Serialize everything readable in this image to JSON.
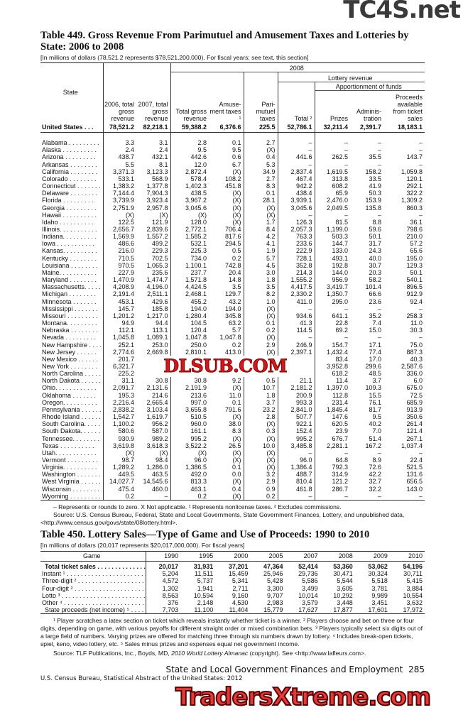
{
  "watermarks": {
    "top": "TC4S.net",
    "middle": "DLSUB.COM",
    "bottom": "TradersXtreme.com"
  },
  "t449": {
    "title": "Table 449. Gross Revenue From Parimutuel and Amusement Taxes and Lotteries by State: 2006 to 2008",
    "subtitle": "[In millions of dollars (78,521.2 represents $78,521,200,000). For fiscal years; see text, this section]",
    "headers": {
      "state": "State",
      "y2008": "2008",
      "lottery": "Lottery revenue",
      "apportion": "Apportionment of funds",
      "c2006": "2006, total gross revenue",
      "c2007": "2007, total gross revenue",
      "total_gross": "Total gross revenue",
      "amuse": "Amuse- ment taxes ¹",
      "pari": "Pari- mutuel taxes",
      "total": "Total ²",
      "prizes": "Prizes",
      "admin": "Adminis- tration",
      "proceeds": "Proceeds available from ticket sales"
    },
    "us": [
      "United States . . .",
      "78,521.2",
      "82,218.1",
      "59,388.2",
      "6,376.6",
      "225.5",
      "52,786.1",
      "32,211.4",
      "2,391.7",
      "18,183.1"
    ],
    "rows": [
      [
        "Alabama . . . . . . . . .",
        "3.3",
        "3.1",
        "2.8",
        "0.1",
        "2.7",
        "–",
        "–",
        "–",
        "–"
      ],
      [
        "Alaska . . . . . . . . . .",
        "2.4",
        "2.4",
        "9.5",
        "9.5",
        "(X)",
        "–",
        "–",
        "–",
        "–"
      ],
      [
        "Arizona . . . . . . . . .",
        "438.7",
        "432.1",
        "442.6",
        "0.6",
        "0.4",
        "441.6",
        "262.5",
        "35.5",
        "143.7"
      ],
      [
        "Arkansas . . . . . . . .",
        "5.5",
        "8.1",
        "12.0",
        "6.7",
        "5.3",
        "–",
        "–",
        "–",
        "–"
      ],
      [
        "California . . . . . . . .",
        "3,371.3",
        "3,123.3",
        "2,872.4",
        "(X)",
        "34.9",
        "2,837.4",
        "1,619.5",
        "158.2",
        "1,059.8"
      ],
      [
        "Colorado . . . . . . . .",
        "533.1",
        "568.9",
        "578.4",
        "108.2",
        "2.7",
        "467.4",
        "313.8",
        "33.5",
        "120.1"
      ],
      [
        "Connecticut . . . . . . .",
        "1,383.2",
        "1,377.8",
        "1,402.3",
        "451.8",
        "8.3",
        "942.2",
        "608.2",
        "41.9",
        "292.1"
      ],
      [
        "Delaware . . . . . . . .",
        "7,144.4",
        "7,904.3",
        "438.5",
        "(X)",
        "0.1",
        "438.4",
        "65.9",
        "50.3",
        "322.2"
      ],
      [
        "Florida . . . . . . . . .",
        "3,739.9",
        "3,923.4",
        "3,967.2",
        "(X)",
        "28.1",
        "3,939.1",
        "2,476.0",
        "153.9",
        "1,309.2"
      ],
      [
        "Georgia . . . . . . . . .",
        "2,751.9",
        "2,957.8",
        "3,045.6",
        "(X)",
        "(X)",
        "3,045.6",
        "2,049.5",
        "135.8",
        "860.3"
      ],
      [
        "Hawaii . . . . . . . . . .",
        "(X)",
        "(X)",
        "(X)",
        "(X)",
        "(X)",
        "–",
        "–",
        "–",
        "–"
      ],
      [
        "Idaho . . . . . . . . . .",
        "122.5",
        "121.9",
        "128.0",
        "(X)",
        "1.7",
        "126.3",
        "81.5",
        "8.8",
        "36.1"
      ],
      [
        "Illinois. . . . . . . . . . .",
        "2,656.7",
        "2,839.6",
        "2,772.1",
        "706.4",
        "8.4",
        "2,057.3",
        "1,199.0",
        "59.6",
        "798.6"
      ],
      [
        "Indiana. . . . . . . . . .",
        "1,569.9",
        "1,557.2",
        "1,585.2",
        "817.6",
        "4.2",
        "763.3",
        "503.3",
        "50.1",
        "210.0"
      ],
      [
        "Iowa . . . . . . . . . . .",
        "486.6",
        "499.2",
        "532.1",
        "294.5",
        "4.1",
        "233.6",
        "144.7",
        "31.7",
        "57.2"
      ],
      [
        "Kansas. . . . . . . . . .",
        "216.0",
        "229.3",
        "225.3",
        "0.5",
        "1.9",
        "222.9",
        "133.0",
        "24.3",
        "65.6"
      ],
      [
        "Kentucky . . . . . . . .",
        "710.5",
        "702.5",
        "734.0",
        "0.2",
        "5.7",
        "728.1",
        "493.1",
        "40.0",
        "195.0"
      ],
      [
        "Louisiana . . . . . . . .",
        "970.5",
        "1,065.3",
        "1,100.1",
        "742.8",
        "4.5",
        "352.8",
        "192.8",
        "30.7",
        "129.3"
      ],
      [
        "Maine. . . . . . . . . . .",
        "227.9",
        "235.6",
        "237.7",
        "20.4",
        "3.0",
        "214.3",
        "144.0",
        "20.3",
        "50.1"
      ],
      [
        "Maryland . . . . . . . .",
        "1,470.9",
        "1,474.7",
        "1,571.8",
        "14.8",
        "1.8",
        "1,555.2",
        "956.9",
        "58.2",
        "540.1"
      ],
      [
        "Massachusetts. . . . .",
        "4,208.9",
        "4,196.0",
        "4,424.5",
        "3.5",
        "3.5",
        "4,417.5",
        "3,419.7",
        "101.4",
        "896.5"
      ],
      [
        "Michigan . . . . . . . .",
        "2,191.4",
        "2,511.1",
        "2,468.1",
        "129.7",
        "8.2",
        "2,330.2",
        "1,350.7",
        "66.6",
        "912.9"
      ],
      [
        "Minnesota . . . . . . .",
        "453.1",
        "429.6",
        "455.2",
        "43.2",
        "1.0",
        "411.0",
        "295.0",
        "23.6",
        "92.4"
      ],
      [
        "Mississippi . . . . . . .",
        "145.7",
        "185.8",
        "194.0",
        "194.0",
        "(X)",
        "–",
        "–",
        "–",
        "–"
      ],
      [
        "Missouri . . . . . . . . .",
        "1,201.2",
        "1,217.0",
        "1,280.4",
        "345.8",
        "(X)",
        "934.6",
        "641.1",
        "35.2",
        "258.3"
      ],
      [
        "Montana. . . . . . . . .",
        "94.9",
        "94.4",
        "104.5",
        "63.2",
        "0.1",
        "41.3",
        "22.8",
        "7.4",
        "11.0"
      ],
      [
        "Nebraska . . . . . . . .",
        "112.1",
        "113.1",
        "120.4",
        "5.7",
        "0.2",
        "114.5",
        "69.2",
        "15.0",
        "30.3"
      ],
      [
        "Nevada . . . . . . . . .",
        "1,045.8",
        "1,089.1",
        "1,047.8",
        "1,047.8",
        "(X)",
        "–",
        "–",
        "–",
        "–"
      ],
      [
        "New Hampshire . . . .",
        "252.1",
        "253.0",
        "250.0",
        "0.2",
        "2.9",
        "246.9",
        "154.7",
        "17.1",
        "75.0"
      ],
      [
        "New Jersey . . . . . .",
        "2,774.6",
        "2,669.8",
        "2,810.1",
        "413.0",
        "(X)",
        "2,397.1",
        "1,432.4",
        "77.4",
        "887.3"
      ],
      [
        "New Mexico . . . . . .",
        "201.7",
        "",
        "",
        "",
        "",
        "",
        "83.4",
        "17.0",
        "40.3"
      ],
      [
        "New York . . . . . . . .",
        "6,321.7",
        "",
        "",
        "",
        "",
        "",
        "3,952.8",
        "299.6",
        "2,587.6"
      ],
      [
        "North Carolina . . . . .",
        "225.2",
        "",
        "",
        "",
        "",
        "",
        "618.2",
        "48.5",
        "336.0"
      ],
      [
        "North Dakota . . . . . .",
        "31.1",
        "30.8",
        "30.8",
        "9.2",
        "0.5",
        "21.1",
        "11.4",
        "3.7",
        "6.0"
      ],
      [
        "Ohio. . . . . . . . . . . .",
        "2,091.7",
        "2,131.6",
        "2,191.9",
        "(X)",
        "10.7",
        "2,181.2",
        "1,397.0",
        "109.3",
        "675.0"
      ],
      [
        "Oklahoma . . . . . . .",
        "195.3",
        "214.6",
        "213.6",
        "11.0",
        "1.8",
        "200.9",
        "112.8",
        "15.5",
        "72.5"
      ],
      [
        "Oregon. . . . . . . . . .",
        "2,216.4",
        "2,665.4",
        "997.0",
        "0.1",
        "3.7",
        "993.3",
        "231.4",
        "76.1",
        "685.9"
      ],
      [
        "Pennsylvania . . . . . .",
        "2,838.2",
        "3,103.4",
        "3,655.8",
        "791.6",
        "23.2",
        "2,841.0",
        "1,845.4",
        "81.7",
        "913.9"
      ],
      [
        "Rhode Island . . . . . .",
        "1,542.7",
        "1,619.7",
        "510.5",
        "(X)",
        "2.8",
        "507.7",
        "147.6",
        "9.5",
        "350.6"
      ],
      [
        "South Carolina. . . . .",
        "1,100.2",
        "956.2",
        "960.0",
        "38.0",
        "(X)",
        "922.1",
        "620.5",
        "40.2",
        "261.4"
      ],
      [
        "South Dakota. . . . . .",
        "580.6",
        "587.0",
        "161.1",
        "8.3",
        "0.3",
        "152.4",
        "23.9",
        "7.0",
        "121.4"
      ],
      [
        "Tennessee. . . . . . . .",
        "930.9",
        "989.2",
        "995.2",
        "(X)",
        "(X)",
        "995.2",
        "676.7",
        "51.4",
        "267.1"
      ],
      [
        "Texas . . . . . . . . . .",
        "3,619.8",
        "3,618.3",
        "3,522.2",
        "26.5",
        "10.0",
        "3,485.8",
        "2,281.1",
        "167.2",
        "1,037.4"
      ],
      [
        "Utah. . . . . . . . . . . .",
        "(X)",
        "(X)",
        "(X)",
        "(X)",
        "(X)",
        "–",
        "–",
        "–",
        "–"
      ],
      [
        "Vermont . . . . . . . . .",
        "98.7",
        "98.4",
        "96.0",
        "(X)",
        "(X)",
        "96.0",
        "64.8",
        "8.9",
        "22.4"
      ],
      [
        "Virginia. . . . . . . . . .",
        "1,289.2",
        "1,286.0",
        "1,386.5",
        "0.1",
        "(X)",
        "1,386.4",
        "792.3",
        "72.6",
        "521.5"
      ],
      [
        "Washington . . . . . . .",
        "449.5",
        "463.5",
        "492.0",
        "0.0",
        "3.2",
        "488.7",
        "314.9",
        "42.2",
        "131.6"
      ],
      [
        "West Virginia . . . . . .",
        "14,027.7",
        "14,545.6",
        "813.3",
        "(X)",
        "2.9",
        "810.4",
        "121.2",
        "32.7",
        "656.5"
      ],
      [
        "Wisconsin . . . . . . . .",
        "475.4",
        "460.0",
        "463.1",
        "0.4",
        "0.9",
        "461.8",
        "286.7",
        "32.2",
        "143.0"
      ],
      [
        "Wyoming . . . . . . . . .",
        "0.2",
        "–",
        "0.2",
        "(X)",
        "0.2",
        "–",
        "–",
        "–",
        "–"
      ]
    ],
    "footnote": "– Represents or rounds to zero. X Not applicable. ¹ Represents nonlicense taxes. ² Excludes commissions.",
    "source": "Source: U.S. Census Bureau, Federal, State and Local Governments, State Government Finances, Lottery, and unpublished data, <http://www.census.gov/govs/state/08lottery.html>."
  },
  "t450": {
    "title": "Table 450. Lottery Sales—Type of Game and Use of Proceeds: 1990 to 2010",
    "subtitle": "[In millions of dollars (20,017 represents $20,017,000,000). For fiscal years]",
    "headers": [
      "Game",
      "1990",
      "1995",
      "2000",
      "2005",
      "2007",
      "2008",
      "2009",
      "2010"
    ],
    "rows": [
      [
        "Total ticket sales . . . . . . . . . . . . . . .",
        "20,017",
        "31,931",
        "37,201",
        "47,364",
        "52,414",
        "53,360",
        "53,062",
        "54,196"
      ],
      [
        "Instant ¹ . . . . . . . . . . . . . . . . . . . . . . .",
        "5,204",
        "11,511",
        "15,459",
        "25,946",
        "29,736",
        "30,471",
        "30,324",
        "30,711"
      ],
      [
        "Three-digit ² . . . . . . . . . . . . . . . . . . . .",
        "4,572",
        "5,737",
        "5,341",
        "5,428",
        "5,586",
        "5,544",
        "5,518",
        "5,415"
      ],
      [
        "Four-digit ² . . . . . . . . . . . . . . . . . . . . .",
        "1,302",
        "1,941",
        "2,711",
        "3,300",
        "3,499",
        "3,605",
        "3,781",
        "3,884"
      ],
      [
        "Lotto ³ . . . . . . . . . . . . . . . . . . . . . . . .",
        "8,563",
        "10,594",
        "9,160",
        "9,707",
        "10,014",
        "10,292",
        "9,989",
        "10,554"
      ],
      [
        "Other ⁴ . . . . . . . . . . . . . . . . . . . . . . .",
        "376",
        "2,148",
        "4,530",
        "2,983",
        "3,579",
        "3,448",
        "3,451",
        "3,632"
      ],
      [
        "State proceeds (net income) ⁵ . . . . . . .",
        "7,703",
        "11,100",
        "11,404",
        "15,779",
        "17,627",
        "17,877",
        "17,601",
        "17,972"
      ]
    ],
    "footnotes": "¹ Player scratches a latex section on ticket which reveals instantly whether ticket is a winner. ² Players choose and bet on three or four digits, depending on game, with various payoffs for different straight order or mixed combination bets. ³ Players typically select six digits out of a large field of numbers. Varying prizes are offered for matching three through six numbers drawn by lottery. ⁴ Includes break-open tickets, spiel, keno, video lottery, etc. ⁵ Sales minus prizes and expenses equal net government income.",
    "source_prefix": "Source: TLF Publications, Inc., Boyds, MD, ",
    "source_title": "2010 World Lottery Almanac",
    "source_suffix": " (copyright). See <http://www.lafleurs.com>."
  },
  "footer": {
    "section": "State and Local Government Finances and Employment",
    "page": "285",
    "publisher": "U.S. Census Bureau, Statistical Abstract of the United States: 2012"
  }
}
